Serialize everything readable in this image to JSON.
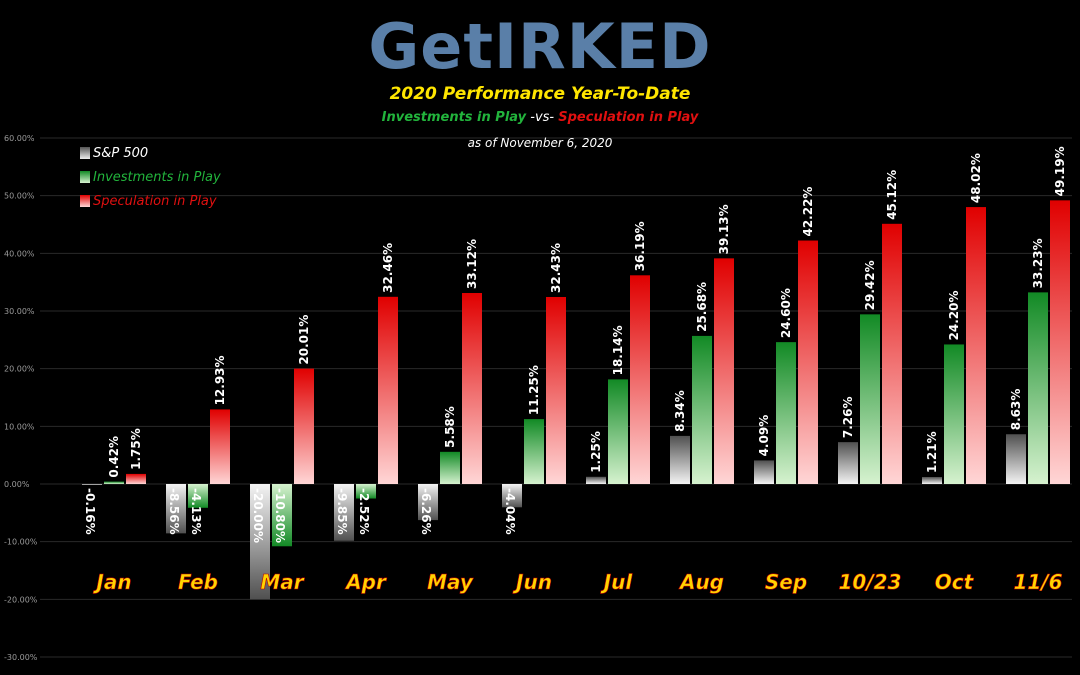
{
  "header": {
    "logo_text": "GetIRKED",
    "subtitle": "2020 Performance Year-To-Date",
    "vs_left": "Investments in Play",
    "vs_mid": " -vs- ",
    "vs_right": "Speculation in Play",
    "as_of": "as of November 6, 2020"
  },
  "colors": {
    "sp500": "#8a8a8a",
    "investments": "#1fa83a",
    "speculation": "#e00000",
    "category_label": "#ffd400",
    "grid": "#2a2a2a"
  },
  "legend": [
    {
      "name": "S&P 500",
      "color": "#cccccc"
    },
    {
      "name": "Investments in Play",
      "color": "#22b43c"
    },
    {
      "name": "Speculation in Play",
      "color": "#e01010"
    }
  ],
  "chart_data": {
    "type": "bar",
    "categories": [
      "Jan",
      "Feb",
      "Mar",
      "Apr",
      "May",
      "Jun",
      "Jul",
      "Aug",
      "Sep",
      "10/23",
      "Oct",
      "11/6"
    ],
    "ylim": [
      -30,
      60
    ],
    "yticks": [
      "-30.00%",
      "-20.00%",
      "-10.00%",
      "0.00%",
      "10.00%",
      "20.00%",
      "30.00%",
      "40.00%",
      "50.00%",
      "60.00%"
    ],
    "grid": true,
    "legend_position": "top-left",
    "series": [
      {
        "name": "S&P 500",
        "values": [
          -0.16,
          -8.56,
          -20.0,
          -9.85,
          -6.26,
          -4.04,
          1.25,
          8.34,
          4.09,
          7.26,
          1.21,
          8.63
        ],
        "labels": [
          "-0.16%",
          "-8.56%",
          "-20.00%",
          "-9.85%",
          "-6.26%",
          "-4.04%",
          "1.25%",
          "8.34%",
          "4.09%",
          "7.26%",
          "1.21%",
          "8.63%"
        ]
      },
      {
        "name": "Investments in Play",
        "values": [
          0.42,
          -4.13,
          -10.8,
          -2.52,
          5.58,
          11.25,
          18.14,
          25.68,
          24.6,
          29.42,
          24.2,
          33.23
        ],
        "labels": [
          "0.42%",
          "-4.13%",
          "-10.80%",
          "-2.52%",
          "5.58%",
          "11.25%",
          "18.14%",
          "25.68%",
          "24.60%",
          "29.42%",
          "24.20%",
          "33.23%"
        ]
      },
      {
        "name": "Speculation in Play",
        "values": [
          1.75,
          12.93,
          20.01,
          32.46,
          33.12,
          32.43,
          36.19,
          39.13,
          42.22,
          45.12,
          48.02,
          49.19
        ],
        "labels": [
          "1.75%",
          "12.93%",
          "20.01%",
          "32.46%",
          "33.12%",
          "32.43%",
          "36.19%",
          "39.13%",
          "42.22%",
          "45.12%",
          "48.02%",
          "49.19%"
        ]
      }
    ]
  }
}
